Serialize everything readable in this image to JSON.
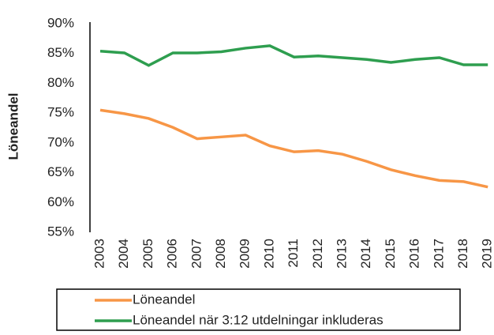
{
  "chart_data": {
    "type": "line",
    "y_label": "Löneandel",
    "categories": [
      "2003",
      "2004",
      "2005",
      "2006",
      "2007",
      "2008",
      "2009",
      "2010",
      "2011",
      "2012",
      "2013",
      "2014",
      "2015",
      "2016",
      "2017",
      "2018",
      "2019"
    ],
    "series": [
      {
        "name": "Löneandel",
        "color": "#f79646",
        "values": [
          75.5,
          74.9,
          74.1,
          72.6,
          70.7,
          71.0,
          71.3,
          69.5,
          68.5,
          68.7,
          68.1,
          66.9,
          65.5,
          64.5,
          63.7,
          63.5,
          62.6
        ]
      },
      {
        "name": "Löneandel när 3:12 utdelningar inkluderas",
        "color": "#2e9e4f",
        "values": [
          85.4,
          85.1,
          83.0,
          85.1,
          85.1,
          85.3,
          85.9,
          86.3,
          84.4,
          84.6,
          84.3,
          84.0,
          83.5,
          84.0,
          84.3,
          83.1,
          83.1
        ]
      }
    ],
    "ylim": [
      55,
      90
    ],
    "yticks": [
      {
        "value": 55,
        "label": "55%"
      },
      {
        "value": 60,
        "label": "60%"
      },
      {
        "value": 65,
        "label": "65%"
      },
      {
        "value": 70,
        "label": "70%"
      },
      {
        "value": 75,
        "label": "75%"
      },
      {
        "value": 80,
        "label": "80%"
      },
      {
        "value": 85,
        "label": "85%"
      },
      {
        "value": 90,
        "label": "90%"
      }
    ],
    "legend_position": "bottom"
  }
}
